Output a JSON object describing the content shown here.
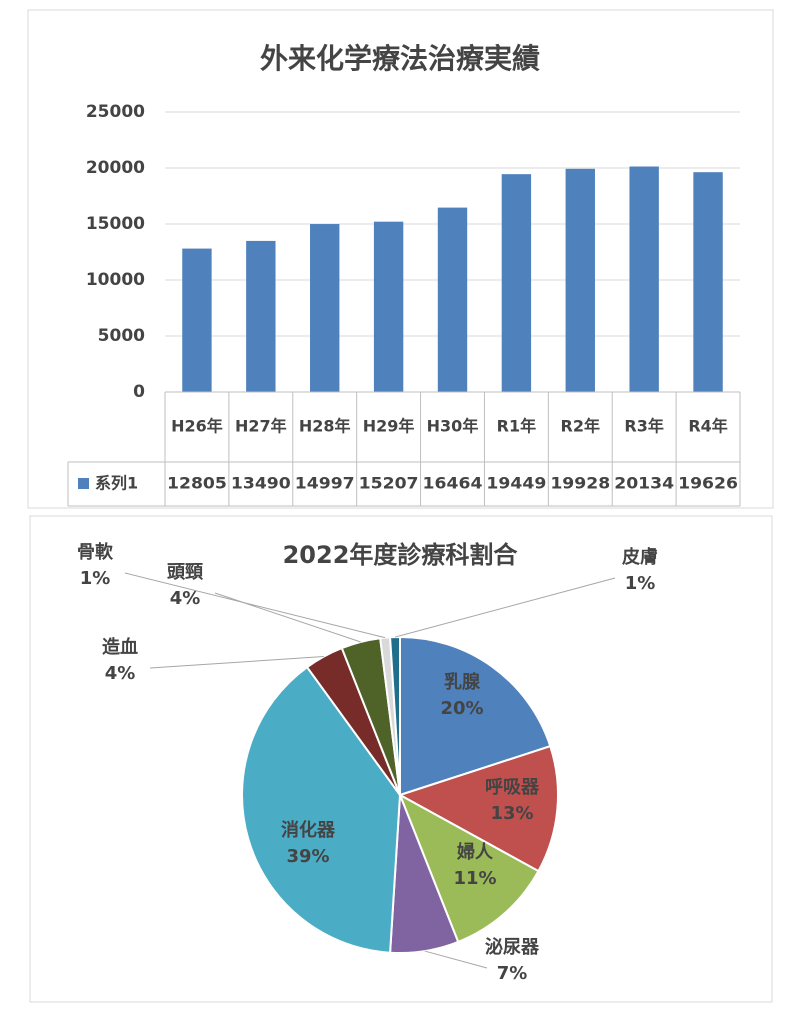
{
  "chart_data": [
    {
      "type": "bar",
      "title": "外来化学療法治療実績",
      "categories": [
        "H26年",
        "H27年",
        "H28年",
        "H29年",
        "H30年",
        "R1年",
        "R2年",
        "R3年",
        "R4年"
      ],
      "series": [
        {
          "name": "系列1",
          "color": "#4f81bd",
          "values": [
            12805,
            13490,
            14997,
            15207,
            16464,
            19449,
            19928,
            20134,
            19626
          ]
        }
      ],
      "ylim": [
        0,
        25000
      ],
      "yticks": [
        0,
        5000,
        10000,
        15000,
        20000,
        25000
      ],
      "grid": true,
      "data_table": true
    },
    {
      "type": "pie",
      "title": "2022年度診療科割合",
      "categories": [
        "乳腺",
        "呼吸器",
        "婦人",
        "泌尿器",
        "消化器",
        "造血",
        "頭頸",
        "骨軟",
        "皮膚"
      ],
      "values": [
        20,
        13,
        11,
        7,
        39,
        4,
        4,
        1,
        1
      ],
      "value_labels": [
        "20%",
        "13%",
        "11%",
        "7%",
        "39%",
        "4%",
        "4%",
        "1%",
        "1%"
      ],
      "colors": [
        "#4f81bd",
        "#c0504d",
        "#9bbb59",
        "#8064a2",
        "#4bacc6",
        "#772c2a",
        "#4f6228",
        "#d9d9d9",
        "#1f6e8c"
      ]
    }
  ]
}
